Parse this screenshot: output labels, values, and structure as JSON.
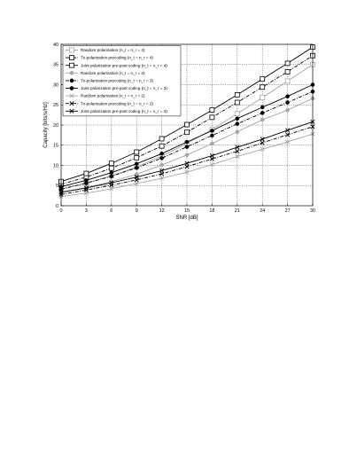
{
  "chart_data": {
    "type": "line",
    "title": "",
    "xlabel": "SNR [dB]",
    "ylabel": "Capacity [bits/s/Hz]",
    "xlim": [
      0,
      30
    ],
    "ylim": [
      0,
      40
    ],
    "x_ticks": [
      0,
      3,
      6,
      9,
      12,
      15,
      18,
      21,
      24,
      27,
      30
    ],
    "y_ticks": [
      0,
      5,
      10,
      15,
      20,
      25,
      30,
      35,
      40
    ],
    "grid": true,
    "legend_position": "top-left",
    "x": [
      0,
      3,
      6,
      9,
      12,
      15,
      18,
      21,
      24,
      27,
      30
    ],
    "series": [
      {
        "name": "Random polarization (n_t = n_r = 4)",
        "color": "#a6a6a6",
        "line": "solid",
        "marker": "square-open",
        "values": [
          4.2,
          5.6,
          7.4,
          9.6,
          12.3,
          15.4,
          18.9,
          22.8,
          26.8,
          30.9,
          35.0
        ]
      },
      {
        "name": "Tx-polarization precoding (n_t = n_r = 4)",
        "color": "#000000",
        "line": "dashdot",
        "marker": "square-open",
        "values": [
          5.3,
          7.1,
          9.3,
          11.9,
          14.8,
          18.2,
          21.9,
          25.6,
          29.4,
          33.2,
          37.2
        ]
      },
      {
        "name": "Joint polarization pre-post coding (n_t = n_r = 4)",
        "color": "#000000",
        "line": "solid",
        "marker": "square-open",
        "values": [
          6.0,
          8.0,
          10.5,
          13.3,
          16.6,
          20.1,
          23.7,
          27.5,
          31.4,
          35.3,
          39.3
        ]
      },
      {
        "name": "Random polarization (n_t = n_r = 3)",
        "color": "#a6a6a6",
        "line": "solid",
        "marker": "circle-filled",
        "values": [
          3.4,
          4.5,
          6.0,
          7.8,
          10.1,
          12.6,
          15.4,
          18.3,
          21.3,
          23.7,
          26.6
        ]
      },
      {
        "name": "Tx-polarization precoding (n_t = n_r = 3)",
        "color": "#000000",
        "line": "dashdot",
        "marker": "circle-filled",
        "values": [
          4.1,
          5.6,
          7.3,
          9.4,
          11.8,
          14.6,
          17.4,
          20.3,
          23.0,
          25.6,
          28.3
        ]
      },
      {
        "name": "Joint polarization pre-post coding (n_t = n_r = 3)",
        "color": "#000000",
        "line": "solid",
        "marker": "circle-filled",
        "values": [
          4.7,
          6.3,
          8.2,
          10.4,
          12.9,
          15.8,
          18.6,
          21.6,
          24.4,
          27.1,
          30.0
        ]
      },
      {
        "name": "Random polarization (n_t = n_r = 2)",
        "color": "#a6a6a6",
        "line": "solid",
        "marker": "x",
        "values": [
          2.3,
          3.1,
          4.2,
          5.5,
          6.8,
          8.3,
          10.2,
          12.2,
          14.0,
          15.8,
          17.8
        ]
      },
      {
        "name": "Tx-polarization precoding (n_t = n_r = 2)",
        "color": "#000000",
        "line": "dashdot",
        "marker": "x",
        "values": [
          2.8,
          3.9,
          5.1,
          6.4,
          7.9,
          9.7,
          11.6,
          13.5,
          15.6,
          17.6,
          19.6
        ]
      },
      {
        "name": "Joint polarization pre-post coding (n_t = n_r = 2)",
        "color": "#000000",
        "line": "solid",
        "marker": "x",
        "values": [
          3.3,
          4.4,
          5.7,
          7.1,
          8.7,
          10.5,
          12.4,
          14.5,
          16.5,
          18.7,
          20.8
        ]
      }
    ]
  }
}
